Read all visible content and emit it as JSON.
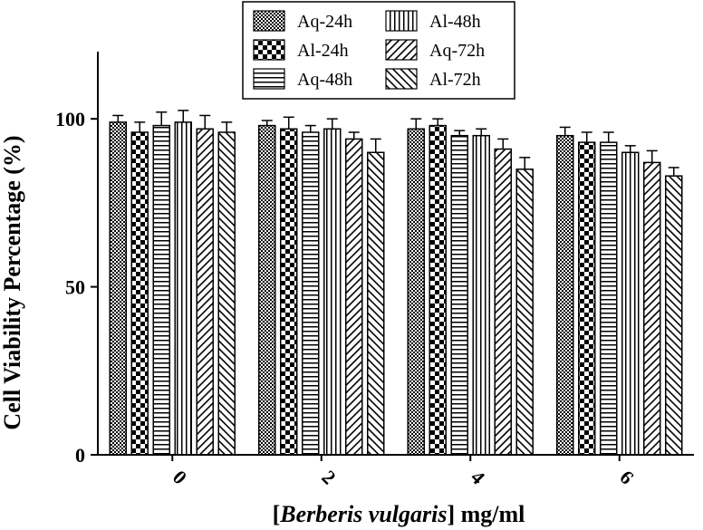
{
  "chart_data": {
    "type": "bar",
    "xlabel_prefix": "[",
    "xlabel_italic": "Berberis vulgaris",
    "xlabel_suffix": "] mg/ml",
    "ylabel": "Cell Viability Percentage (%)",
    "categories": [
      "0",
      "2",
      "4",
      "6"
    ],
    "ylim": [
      0,
      120
    ],
    "yticks": [
      "0",
      "50",
      "100"
    ],
    "ytick_values": [
      0,
      50,
      100
    ],
    "legend_position": "top-center",
    "series": [
      {
        "name": "Aq-24h",
        "pattern": "dots",
        "values": [
          99,
          98,
          97,
          95
        ],
        "errors": [
          2,
          1.5,
          3,
          2.5
        ]
      },
      {
        "name": "Al-24h",
        "pattern": "checker",
        "values": [
          96,
          97,
          98,
          93
        ],
        "errors": [
          3,
          3.5,
          2,
          3
        ]
      },
      {
        "name": "Aq-48h",
        "pattern": "hlines",
        "values": [
          98,
          96,
          95,
          93
        ],
        "errors": [
          4,
          2,
          1.5,
          3
        ]
      },
      {
        "name": "Al-48h",
        "pattern": "vlines",
        "values": [
          99,
          97,
          95,
          90
        ],
        "errors": [
          3.5,
          3,
          2,
          2
        ]
      },
      {
        "name": "Aq-72h",
        "pattern": "diag-right",
        "values": [
          97,
          94,
          91,
          87
        ],
        "errors": [
          4,
          2,
          3,
          3.5
        ]
      },
      {
        "name": "Al-72h",
        "pattern": "diag-left",
        "values": [
          96,
          90,
          85,
          83
        ],
        "errors": [
          3,
          4,
          3.5,
          2.5
        ]
      }
    ]
  }
}
